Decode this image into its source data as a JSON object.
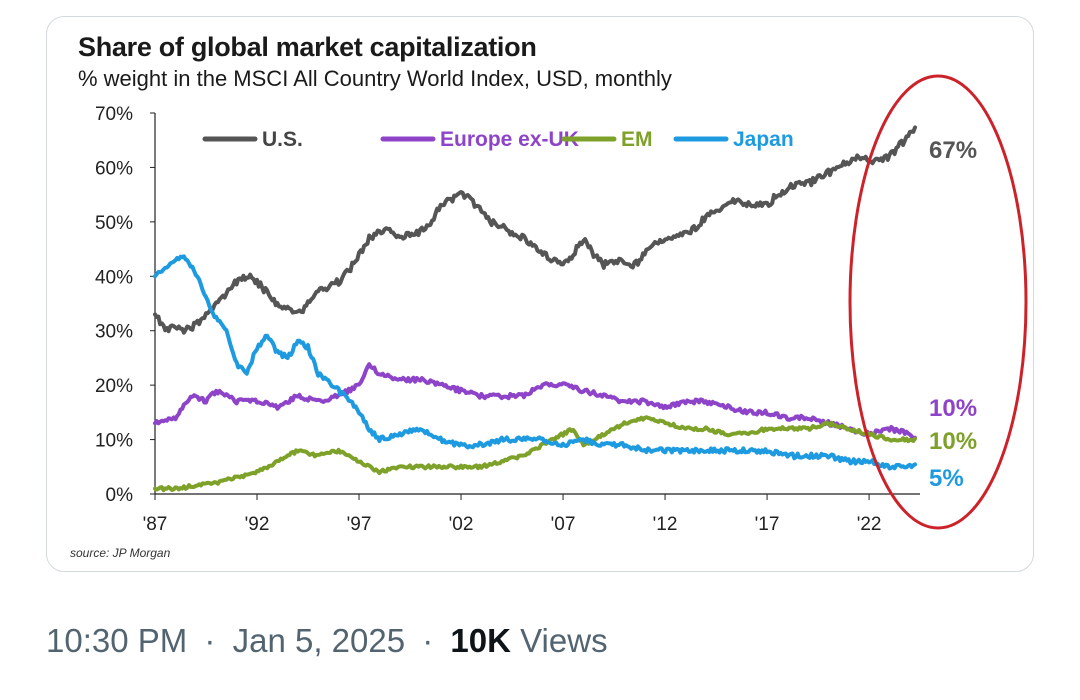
{
  "post": {
    "time": "10:30 PM",
    "date": "Jan 5, 2025",
    "separator": "·",
    "views_count": "10K",
    "views_label": "Views"
  },
  "chart_data": {
    "type": "line",
    "title": "Share of global market capitalization",
    "subtitle": "% weight in the MSCI All Country World Index, USD, monthly",
    "source": "source: JP Morgan",
    "xlabel": "",
    "ylabel": "",
    "xlim": [
      1987,
      2024.3
    ],
    "ylim": [
      0,
      70
    ],
    "x_ticks": [
      1987,
      1992,
      1997,
      2002,
      2007,
      2012,
      2017,
      2022
    ],
    "x_tick_labels": [
      "'87",
      "'92",
      "'97",
      "'02",
      "'07",
      "'12",
      "'17",
      "'22"
    ],
    "y_ticks": [
      0,
      10,
      20,
      30,
      40,
      50,
      60,
      70
    ],
    "y_tick_labels": [
      "0%",
      "10%",
      "20%",
      "30%",
      "40%",
      "50%",
      "60%",
      "70%"
    ],
    "grid": false,
    "legend_position": "top",
    "series": [
      {
        "name": "U.S.",
        "color": "#555555",
        "end_label": "67%",
        "points": [
          [
            1987,
            33
          ],
          [
            1987.5,
            30
          ],
          [
            1988,
            31
          ],
          [
            1988.5,
            30
          ],
          [
            1989,
            31
          ],
          [
            1989.5,
            33
          ],
          [
            1990,
            35
          ],
          [
            1990.5,
            37
          ],
          [
            1991,
            39
          ],
          [
            1991.5,
            40
          ],
          [
            1992,
            39
          ],
          [
            1992.5,
            37
          ],
          [
            1993,
            35
          ],
          [
            1993.5,
            34
          ],
          [
            1994,
            33
          ],
          [
            1994.5,
            35
          ],
          [
            1995,
            37
          ],
          [
            1996,
            39
          ],
          [
            1996.5,
            41
          ],
          [
            1997,
            44
          ],
          [
            1997.5,
            47
          ],
          [
            1998,
            48
          ],
          [
            1998.5,
            49
          ],
          [
            1999,
            47
          ],
          [
            1999.5,
            48
          ],
          [
            2000,
            48
          ],
          [
            2000.5,
            50
          ],
          [
            2001,
            53
          ],
          [
            2001.5,
            54
          ],
          [
            2002,
            55
          ],
          [
            2002.5,
            54
          ],
          [
            2003,
            52
          ],
          [
            2003.5,
            50
          ],
          [
            2004,
            49
          ],
          [
            2004.5,
            48
          ],
          [
            2005,
            47
          ],
          [
            2005.5,
            46
          ],
          [
            2006,
            44
          ],
          [
            2006.5,
            43
          ],
          [
            2007,
            42
          ],
          [
            2007.5,
            44
          ],
          [
            2008,
            47
          ],
          [
            2008.5,
            44
          ],
          [
            2009,
            42
          ],
          [
            2009.5,
            43
          ],
          [
            2010,
            43
          ],
          [
            2010.5,
            42
          ],
          [
            2011,
            44
          ],
          [
            2011.5,
            46
          ],
          [
            2012,
            47
          ],
          [
            2012.5,
            47
          ],
          [
            2013,
            48
          ],
          [
            2013.5,
            49
          ],
          [
            2014,
            51
          ],
          [
            2014.5,
            52
          ],
          [
            2015,
            53
          ],
          [
            2015.5,
            54
          ],
          [
            2016,
            53
          ],
          [
            2016.5,
            53
          ],
          [
            2017,
            53
          ],
          [
            2017.5,
            55
          ],
          [
            2018,
            56
          ],
          [
            2018.5,
            57
          ],
          [
            2019,
            57
          ],
          [
            2019.5,
            58
          ],
          [
            2020,
            59
          ],
          [
            2020.5,
            60
          ],
          [
            2021,
            61
          ],
          [
            2021.5,
            62
          ],
          [
            2022,
            61
          ],
          [
            2022.5,
            61
          ],
          [
            2023,
            62
          ],
          [
            2023.5,
            64
          ],
          [
            2024,
            66
          ],
          [
            2024.3,
            67
          ]
        ]
      },
      {
        "name": "Europe ex-UK",
        "color": "#8e44c8",
        "end_label": "10%",
        "points": [
          [
            1987,
            13
          ],
          [
            1988,
            14
          ],
          [
            1988.8,
            18
          ],
          [
            1989.5,
            17
          ],
          [
            1990,
            19
          ],
          [
            1991,
            17
          ],
          [
            1992,
            17
          ],
          [
            1993,
            16
          ],
          [
            1994,
            18
          ],
          [
            1995,
            17
          ],
          [
            1996,
            18
          ],
          [
            1997,
            20
          ],
          [
            1997.5,
            24
          ],
          [
            1998,
            22
          ],
          [
            1999,
            21
          ],
          [
            2000,
            21
          ],
          [
            2001,
            20
          ],
          [
            2002,
            19
          ],
          [
            2003,
            18
          ],
          [
            2004,
            18
          ],
          [
            2005,
            18
          ],
          [
            2006,
            20
          ],
          [
            2007,
            20
          ],
          [
            2008,
            19
          ],
          [
            2009,
            18
          ],
          [
            2010,
            17
          ],
          [
            2011,
            17
          ],
          [
            2012,
            16
          ],
          [
            2013,
            17
          ],
          [
            2014,
            17
          ],
          [
            2015,
            16
          ],
          [
            2016,
            15
          ],
          [
            2017,
            15
          ],
          [
            2018,
            14
          ],
          [
            2019,
            14
          ],
          [
            2020,
            13
          ],
          [
            2021,
            12
          ],
          [
            2022,
            11
          ],
          [
            2023,
            12
          ],
          [
            2024,
            11
          ],
          [
            2024.3,
            10
          ]
        ]
      },
      {
        "name": "EM",
        "color": "#7ea12a",
        "end_label": "10%",
        "points": [
          [
            1987,
            1
          ],
          [
            1988,
            1
          ],
          [
            1989,
            1.5
          ],
          [
            1990,
            2
          ],
          [
            1991,
            3
          ],
          [
            1992,
            4
          ],
          [
            1993,
            6
          ],
          [
            1994,
            8
          ],
          [
            1995,
            7
          ],
          [
            1996,
            8
          ],
          [
            1996.5,
            7
          ],
          [
            1997,
            6
          ],
          [
            1998,
            4
          ],
          [
            1999,
            5
          ],
          [
            2000,
            5
          ],
          [
            2001,
            5
          ],
          [
            2002,
            5
          ],
          [
            2003,
            5
          ],
          [
            2004,
            6
          ],
          [
            2005,
            7
          ],
          [
            2006,
            9
          ],
          [
            2007,
            11
          ],
          [
            2007.5,
            12
          ],
          [
            2008,
            9
          ],
          [
            2009,
            11
          ],
          [
            2010,
            13
          ],
          [
            2011,
            14
          ],
          [
            2012,
            13
          ],
          [
            2013,
            12
          ],
          [
            2014,
            12
          ],
          [
            2015,
            11
          ],
          [
            2016,
            11
          ],
          [
            2017,
            12
          ],
          [
            2018,
            12
          ],
          [
            2019,
            12
          ],
          [
            2020,
            13
          ],
          [
            2021,
            12
          ],
          [
            2022,
            11
          ],
          [
            2023,
            10
          ],
          [
            2024,
            10
          ],
          [
            2024.3,
            10
          ]
        ]
      },
      {
        "name": "Japan",
        "color": "#1e9be0",
        "end_label": "5%",
        "points": [
          [
            1987,
            40
          ],
          [
            1987.7,
            42
          ],
          [
            1988.3,
            44
          ],
          [
            1988.8,
            42
          ],
          [
            1989.3,
            38
          ],
          [
            1989.8,
            33
          ],
          [
            1990.5,
            30
          ],
          [
            1991,
            24
          ],
          [
            1991.5,
            22
          ],
          [
            1992,
            27
          ],
          [
            1992.5,
            29
          ],
          [
            1993,
            26
          ],
          [
            1993.5,
            25
          ],
          [
            1994,
            28
          ],
          [
            1994.5,
            27
          ],
          [
            1995,
            22
          ],
          [
            1996,
            19
          ],
          [
            1996.8,
            16
          ],
          [
            1997.5,
            12
          ],
          [
            1998,
            10
          ],
          [
            1999,
            11
          ],
          [
            2000,
            12
          ],
          [
            2001,
            10
          ],
          [
            2002,
            9
          ],
          [
            2003,
            9
          ],
          [
            2004,
            10
          ],
          [
            2005,
            10
          ],
          [
            2006,
            10
          ],
          [
            2007,
            9
          ],
          [
            2008,
            10
          ],
          [
            2009,
            9
          ],
          [
            2010,
            9
          ],
          [
            2011,
            8
          ],
          [
            2012,
            8
          ],
          [
            2013,
            8
          ],
          [
            2014,
            8
          ],
          [
            2015,
            8
          ],
          [
            2016,
            8
          ],
          [
            2017,
            8
          ],
          [
            2018,
            7
          ],
          [
            2019,
            7
          ],
          [
            2020,
            7
          ],
          [
            2021,
            6
          ],
          [
            2022,
            6
          ],
          [
            2023,
            5
          ],
          [
            2024,
            5
          ],
          [
            2024.3,
            5
          ]
        ]
      }
    ],
    "annotation": {
      "shape": "ellipse",
      "color": "#cc2229",
      "note": "highlights latest values"
    }
  }
}
